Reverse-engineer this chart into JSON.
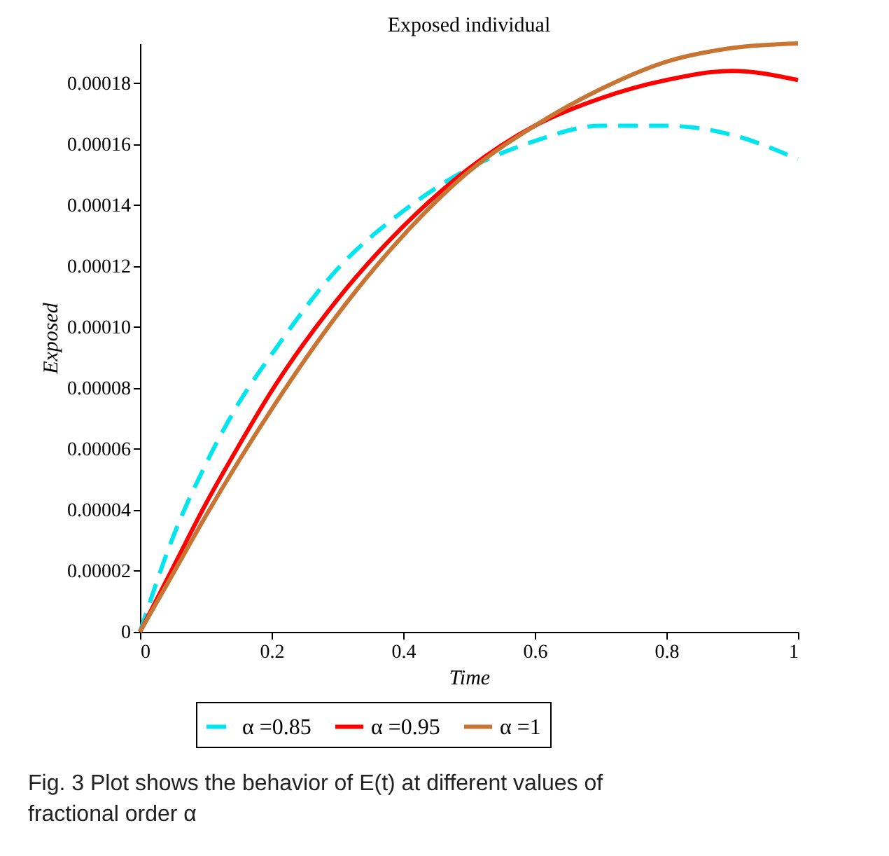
{
  "chart_data": {
    "type": "line",
    "title": "Exposed individual",
    "xlabel": "Time",
    "ylabel": "Exposed",
    "xlim": [
      0,
      1
    ],
    "xticks": [
      0,
      0.2,
      0.4,
      0.6,
      0.8,
      1
    ],
    "ylim": [
      0,
      0.000193
    ],
    "yticks": [
      0,
      {
        "value": 2e-05,
        "label": "0.00002"
      },
      {
        "value": 4e-05,
        "label": "0.00004"
      },
      {
        "value": 6e-05,
        "label": "0.00006"
      },
      {
        "value": 8e-05,
        "label": "0.00008"
      },
      {
        "value": 0.0001,
        "label": "0.00010"
      },
      {
        "value": 0.00012,
        "label": "0.00012"
      },
      {
        "value": 0.00014,
        "label": "0.00014"
      },
      {
        "value": 0.00016,
        "label": "0.00016"
      },
      {
        "value": 0.00018,
        "label": "0.00018"
      }
    ],
    "x": [
      0,
      0.05,
      0.1,
      0.15,
      0.2,
      0.3,
      0.4,
      0.5,
      0.6,
      0.7,
      0.8,
      0.9,
      1
    ],
    "series": [
      {
        "name": "α =0.85",
        "color": "#00e5ee",
        "line_style": "dashed",
        "values": [
          0,
          3.1e-05,
          5.5e-05,
          7.5e-05,
          9.1e-05,
          0.000119,
          0.000138,
          0.000152,
          0.000161,
          0.000166,
          0.000166,
          0.000163,
          0.000155
        ]
      },
      {
        "name": "α =0.95",
        "color": "#ff0000",
        "line_style": "solid",
        "values": [
          0,
          2.1e-05,
          4.2e-05,
          6.1e-05,
          7.9e-05,
          0.000109,
          0.000133,
          0.000152,
          0.000166,
          0.000175,
          0.000181,
          0.000184,
          0.000181
        ]
      },
      {
        "name": "α =1",
        "color": "#c87533",
        "line_style": "solid",
        "values": [
          0,
          1.9e-05,
          3.8e-05,
          5.6e-05,
          7.3e-05,
          0.000104,
          0.00013,
          0.000151,
          0.000166,
          0.000178,
          0.000187,
          0.0001915,
          0.000193
        ]
      }
    ],
    "legend": "bottom",
    "grid": false,
    "annotations": [
      "Fig. 3  Plot shows the behavior of E(t) at different values of fractional order α"
    ]
  }
}
